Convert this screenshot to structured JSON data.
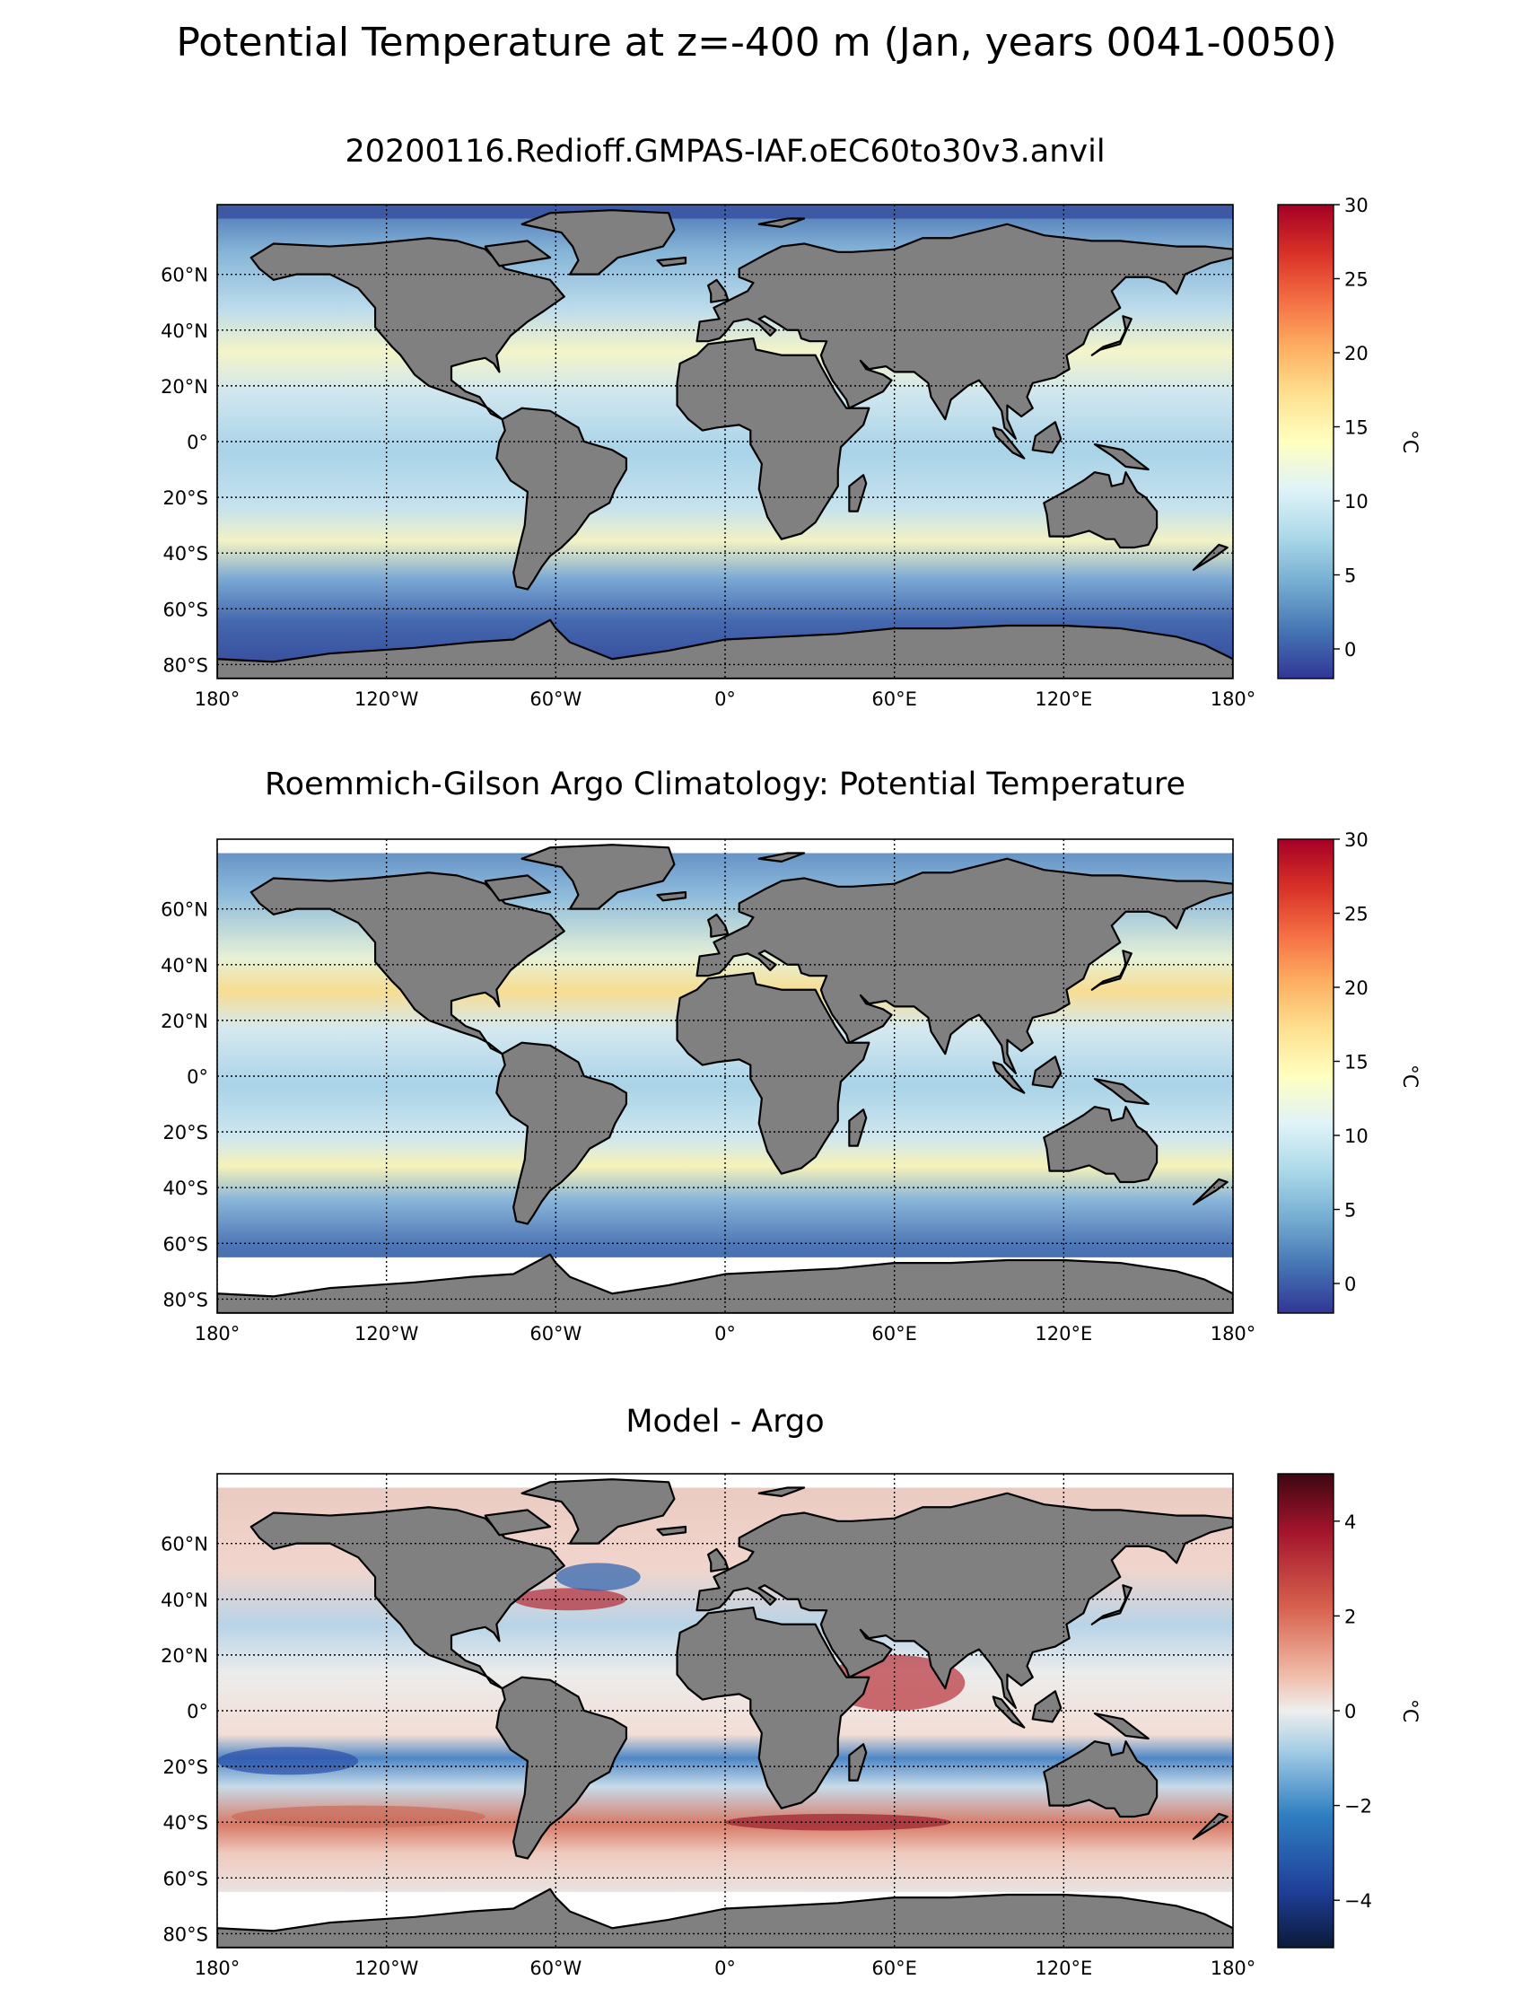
{
  "suptitle": "Potential Temperature at z=-400 m (Jan, years 0041-0050)",
  "lon_ticks": [
    "180°",
    "120°W",
    "60°W",
    "0°",
    "60°E",
    "120°E",
    "180°"
  ],
  "lat_ticks": [
    "60°N",
    "40°N",
    "20°N",
    "0°",
    "20°S",
    "40°S",
    "60°S",
    "80°S"
  ],
  "colors": {
    "land": "#808080",
    "missing": "#ffffff",
    "coast": "#000000",
    "grid": "#000000"
  },
  "chart_data": [
    {
      "type": "heatmap",
      "title": "20200116.Redioff.GMPAS-IAF.oEC60to30v3.anvil",
      "xlim": [
        -180,
        180
      ],
      "ylim": [
        -85,
        85
      ],
      "xticks": [
        -180,
        -120,
        -60,
        0,
        60,
        120,
        180
      ],
      "yticks": [
        60,
        40,
        20,
        0,
        -20,
        -40,
        -60,
        -80
      ],
      "grid": true,
      "colormap": "RdYlBu_r",
      "vmin": -2,
      "vmax": 30,
      "colorbar": {
        "label": "°C",
        "ticks": [
          "0",
          "5",
          "10",
          "15",
          "20",
          "25",
          "30"
        ],
        "values": [
          0,
          5,
          10,
          15,
          20,
          25,
          30
        ]
      }
    },
    {
      "type": "heatmap",
      "title": "Roemmich-Gilson Argo Climatology: Potential Temperature",
      "xlim": [
        -180,
        180
      ],
      "ylim": [
        -85,
        85
      ],
      "xticks": [
        -180,
        -120,
        -60,
        0,
        60,
        120,
        180
      ],
      "yticks": [
        60,
        40,
        20,
        0,
        -20,
        -40,
        -60,
        -80
      ],
      "grid": true,
      "colormap": "RdYlBu_r",
      "vmin": -2,
      "vmax": 30,
      "colorbar": {
        "label": "°C",
        "ticks": [
          "0",
          "5",
          "10",
          "15",
          "20",
          "25",
          "30"
        ],
        "values": [
          0,
          5,
          10,
          15,
          20,
          25,
          30
        ]
      }
    },
    {
      "type": "heatmap",
      "title": "Model - Argo",
      "xlim": [
        -180,
        180
      ],
      "ylim": [
        -85,
        85
      ],
      "xticks": [
        -180,
        -120,
        -60,
        0,
        60,
        120,
        180
      ],
      "yticks": [
        60,
        40,
        20,
        0,
        -20,
        -40,
        -60,
        -80
      ],
      "grid": true,
      "colormap": "RdBu_r",
      "vmin": -5,
      "vmax": 5,
      "colorbar": {
        "label": "°C",
        "ticks": [
          "−4",
          "−2",
          "0",
          "2",
          "4"
        ],
        "values": [
          -4,
          -2,
          0,
          2,
          4
        ]
      }
    }
  ]
}
